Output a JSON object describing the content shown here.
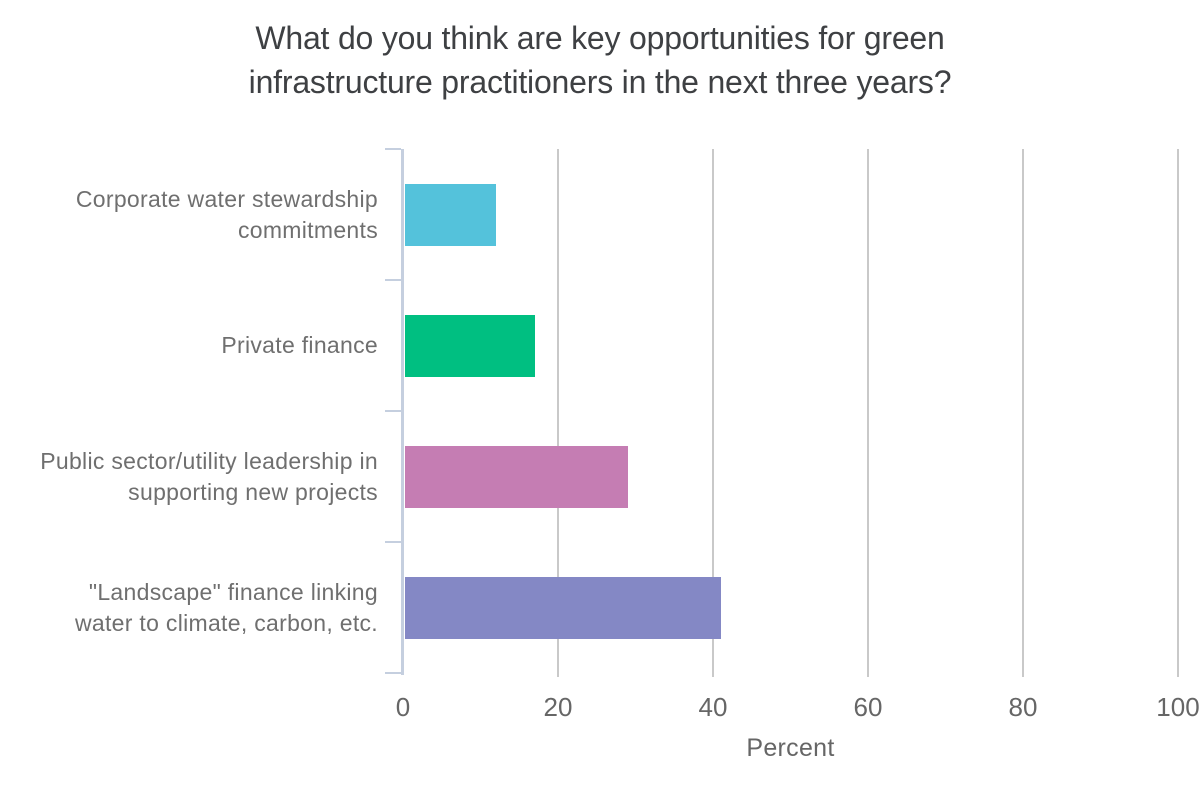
{
  "title": {
    "line1": "What do you think are key opportunities for green",
    "line2": "infrastructure practitioners in the next three years?"
  },
  "chart_data": {
    "type": "bar",
    "orientation": "horizontal",
    "title": "What do you think are key opportunities for green infrastructure practitioners in the next three years?",
    "categories": [
      "Corporate water stewardship commitments",
      "Private finance",
      "Public sector/utility leadership in supporting new projects",
      "\"Landscape\" finance linking water to climate, carbon, etc."
    ],
    "category_lines": [
      [
        "Corporate water stewardship",
        "commitments"
      ],
      [
        "Private finance"
      ],
      [
        "Public sector/utility leadership in",
        "supporting new projects"
      ],
      [
        "\"Landscape\" finance linking",
        "water to climate, carbon, etc."
      ]
    ],
    "values": [
      12,
      17,
      29,
      41
    ],
    "bar_colors": [
      "#54c2db",
      "#00bf81",
      "#c57db3",
      "#8488c5"
    ],
    "xlabel": "Percent",
    "ylabel": "",
    "xlim": [
      0,
      100
    ],
    "x_ticks": [
      0,
      20,
      40,
      60,
      80,
      100
    ],
    "grid": "vertical",
    "legend": "none"
  },
  "colors": {
    "background": "#ffffff",
    "title_text": "#3e4043",
    "category_text": "#6f6f6f",
    "tick_text": "#666666",
    "gridline": "#c9c9c9",
    "axis_line": "#c5cfdf"
  }
}
